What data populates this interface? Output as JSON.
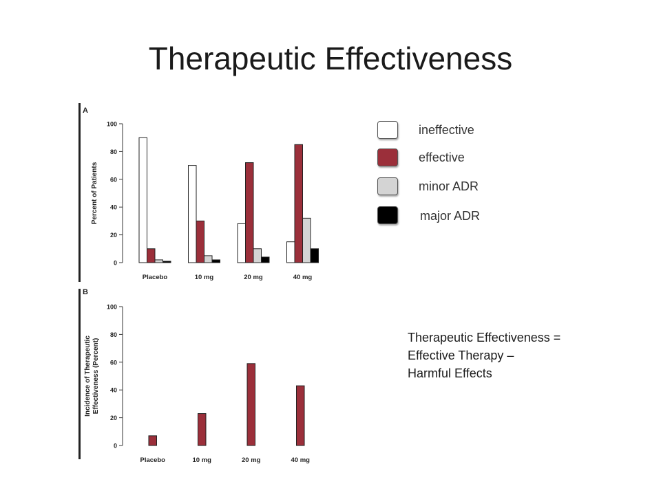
{
  "slide": {
    "title": "Therapeutic Effectiveness"
  },
  "legend": [
    {
      "label": "ineffective",
      "color": "#ffffff"
    },
    {
      "label": "effective",
      "color": "#9b2f3a"
    },
    {
      "label": "minor ADR",
      "color": "#d4d4d4"
    },
    {
      "label": "major ADR",
      "color": "#000000"
    }
  ],
  "note": {
    "lines": [
      "Therapeutic Effectiveness =",
      "Effective Therapy –",
      "Harmful Effects"
    ]
  },
  "chart_data": [
    {
      "panel_label": "A",
      "type": "bar",
      "categories": [
        "Placebo",
        "10 mg",
        "20 mg",
        "40 mg"
      ],
      "series": [
        {
          "name": "ineffective",
          "color": "#ffffff",
          "values": [
            90,
            70,
            28,
            15
          ]
        },
        {
          "name": "effective",
          "color": "#9b2f3a",
          "values": [
            10,
            30,
            72,
            85
          ]
        },
        {
          "name": "minor ADR",
          "color": "#d4d4d4",
          "values": [
            2,
            5,
            10,
            32
          ]
        },
        {
          "name": "major ADR",
          "color": "#000000",
          "values": [
            1,
            2,
            4,
            10
          ]
        }
      ],
      "ylabel": "Percent of Patients",
      "ylim": [
        0,
        100
      ],
      "yticks": [
        0,
        20,
        40,
        60,
        80,
        100
      ],
      "grid": false
    },
    {
      "panel_label": "B",
      "type": "bar",
      "categories": [
        "Placebo",
        "10 mg",
        "20 mg",
        "40 mg"
      ],
      "series": [
        {
          "color": "#9b2f3a",
          "values": [
            7,
            23,
            59,
            43
          ]
        }
      ],
      "ylabel": [
        "Incidence of Therapeutic",
        "Effectiveness (Percent)"
      ],
      "ylim": [
        0,
        100
      ],
      "yticks": [
        0,
        20,
        40,
        60,
        80,
        100
      ],
      "grid": false
    }
  ]
}
